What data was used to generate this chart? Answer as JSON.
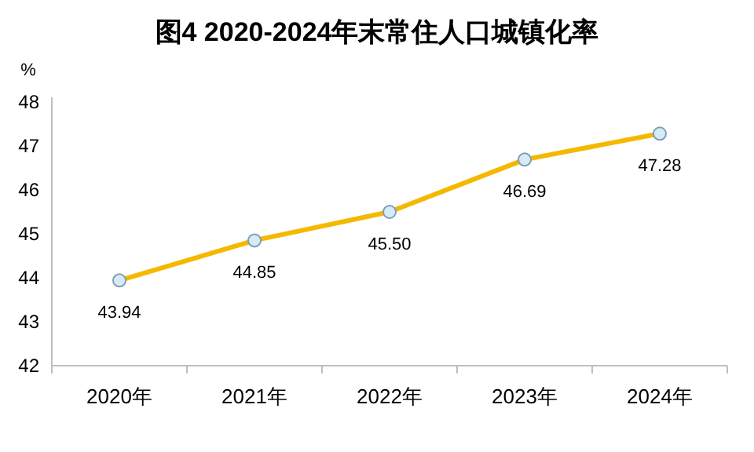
{
  "chart_data": {
    "type": "line",
    "title": "图4 2020-2024年末常住人口城镇化率",
    "ylabel": "%",
    "categories": [
      "2020年",
      "2021年",
      "2022年",
      "2023年",
      "2024年"
    ],
    "series": [
      {
        "color": "#f5b800",
        "values": [
          43.94,
          44.85,
          45.5,
          46.69,
          47.28
        ],
        "value_labels": [
          "43.94",
          "44.85",
          "45.50",
          "46.69",
          "47.28"
        ]
      }
    ],
    "ylim": [
      42,
      48
    ],
    "yticks": [
      42,
      43,
      44,
      45,
      46,
      47,
      48
    ],
    "marker": "circle",
    "line_style": "solid"
  }
}
